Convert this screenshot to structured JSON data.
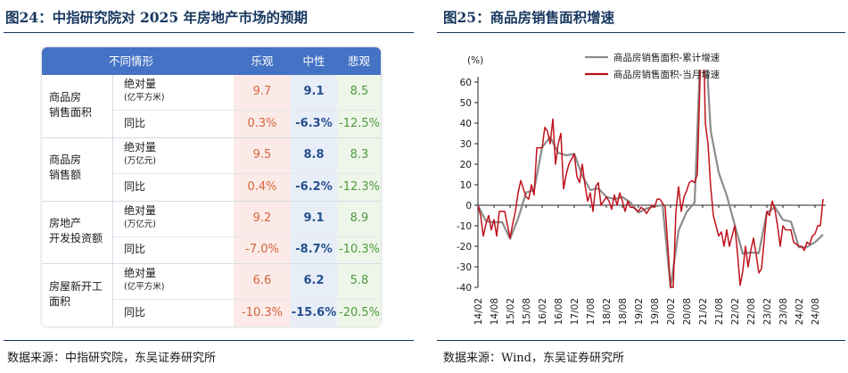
{
  "left": {
    "title": "图24：中指研究院对 2025 年房地产市场的预期",
    "source": "数据来源：中指研究院，东吴证券研究所",
    "table": {
      "headers": [
        "不同情形",
        "乐观",
        "中性",
        "悲观"
      ],
      "groups": [
        {
          "name": [
            "商品房",
            "销售面积"
          ],
          "rows": [
            {
              "label": "绝对量",
              "unit": "(亿平方米)",
              "optimistic": "9.7",
              "neutral": "9.1",
              "pessimistic": "8.5"
            },
            {
              "label": "同比",
              "unit": "",
              "optimistic": "0.3%",
              "neutral": "-6.3%",
              "pessimistic": "-12.5%"
            }
          ]
        },
        {
          "name": [
            "商品房",
            "销售额"
          ],
          "rows": [
            {
              "label": "绝对量",
              "unit": "(万亿元)",
              "optimistic": "9.5",
              "neutral": "8.8",
              "pessimistic": "8.3"
            },
            {
              "label": "同比",
              "unit": "",
              "optimistic": "0.4%",
              "neutral": "-6.2%",
              "pessimistic": "-12.3%"
            }
          ]
        },
        {
          "name": [
            "房地产",
            "开发投资额"
          ],
          "rows": [
            {
              "label": "绝对量",
              "unit": "(万亿元)",
              "optimistic": "9.2",
              "neutral": "9.1",
              "pessimistic": "8.9"
            },
            {
              "label": "同比",
              "unit": "",
              "optimistic": "-7.0%",
              "neutral": "-8.7%",
              "pessimistic": "-10.3%"
            }
          ]
        },
        {
          "name": [
            "房屋新开工",
            "面积"
          ],
          "rows": [
            {
              "label": "绝对量",
              "unit": "(亿平方米)",
              "optimistic": "6.6",
              "neutral": "6.2",
              "pessimistic": "5.8"
            },
            {
              "label": "同比",
              "unit": "",
              "optimistic": "-10.3%",
              "neutral": "-15.6%",
              "pessimistic": "-20.5%"
            }
          ]
        }
      ]
    },
    "colors": {
      "header": "#4472c4",
      "optimistic": "#d4663d",
      "neutral": "#27508f",
      "pessimistic": "#4e9a3c"
    }
  },
  "right": {
    "title": "图25：商品房销售面积增速",
    "source": "数据来源：Wind，东吴证券研究所",
    "chart_data": {
      "type": "line",
      "yunit": "(%)",
      "ylim": [
        -40,
        60
      ],
      "yticks": [
        -40,
        -30,
        -20,
        -10,
        0,
        10,
        20,
        30,
        40,
        50,
        60
      ],
      "xticks": [
        "14/02",
        "14/08",
        "15/02",
        "15/08",
        "16/02",
        "16/08",
        "17/02",
        "17/08",
        "18/02",
        "18/08",
        "19/02",
        "19/08",
        "20/02",
        "20/08",
        "21/02",
        "21/08",
        "22/02",
        "22/08",
        "23/02",
        "23/08",
        "24/02",
        "24/08"
      ],
      "grid": false,
      "legend_position": "top",
      "series": [
        {
          "name": "商品房销售面积-累计增速",
          "color": "#8c8c8c",
          "points": [
            [
              "14/02",
              -0.1
            ],
            [
              "14/05",
              -7.8
            ],
            [
              "14/08",
              -8.3
            ],
            [
              "14/11",
              -8.2
            ],
            [
              "15/02",
              -16.3
            ],
            [
              "15/05",
              -6.6
            ],
            [
              "15/08",
              6.2
            ],
            [
              "15/11",
              7.4
            ],
            [
              "16/02",
              28.2
            ],
            [
              "16/05",
              33.2
            ],
            [
              "16/08",
              25.5
            ],
            [
              "16/11",
              24.3
            ],
            [
              "17/02",
              25.1
            ],
            [
              "17/05",
              14.3
            ],
            [
              "17/08",
              7.4
            ],
            [
              "17/11",
              8.2
            ],
            [
              "18/02",
              4.1
            ],
            [
              "18/05",
              2.9
            ],
            [
              "18/08",
              4.0
            ],
            [
              "18/11",
              1.4
            ],
            [
              "19/02",
              -3.6
            ],
            [
              "19/05",
              -1.6
            ],
            [
              "19/08",
              -0.6
            ],
            [
              "19/11",
              0.2
            ],
            [
              "20/02",
              -39.9
            ],
            [
              "20/05",
              -12.3
            ],
            [
              "20/08",
              -3.3
            ],
            [
              "20/11",
              1.3
            ],
            [
              "21/02",
              104.9
            ],
            [
              "21/05",
              36.3
            ],
            [
              "21/08",
              15.9
            ],
            [
              "21/11",
              4.8
            ],
            [
              "22/02",
              -9.6
            ],
            [
              "22/05",
              -23.6
            ],
            [
              "22/08",
              -23.0
            ],
            [
              "22/11",
              -23.3
            ],
            [
              "23/02",
              -3.6
            ],
            [
              "23/05",
              -0.9
            ],
            [
              "23/08",
              -7.1
            ],
            [
              "23/11",
              -8.0
            ],
            [
              "24/02",
              -20.5
            ],
            [
              "24/05",
              -20.3
            ],
            [
              "24/08",
              -18.0
            ],
            [
              "24/11",
              -14.3
            ]
          ]
        },
        {
          "name": "商品房销售面积-当月增速",
          "color": "#c0121c",
          "points": [
            [
              "14/02",
              -0.1
            ],
            [
              "14/03",
              -5
            ],
            [
              "14/04",
              -15
            ],
            [
              "14/05",
              -9
            ],
            [
              "14/06",
              -5
            ],
            [
              "14/07",
              -12
            ],
            [
              "14/08",
              -7
            ],
            [
              "14/09",
              -15
            ],
            [
              "14/10",
              -3
            ],
            [
              "14/11",
              -3
            ],
            [
              "14/12",
              -3
            ],
            [
              "15/02",
              -16
            ],
            [
              "15/03",
              -9
            ],
            [
              "15/04",
              -3
            ],
            [
              "15/05",
              6
            ],
            [
              "15/06",
              12
            ],
            [
              "15/07",
              8
            ],
            [
              "15/08",
              4
            ],
            [
              "15/09",
              3
            ],
            [
              "15/10",
              10
            ],
            [
              "15/11",
              5
            ],
            [
              "15/12",
              28
            ],
            [
              "16/02",
              28
            ],
            [
              "16/03",
              38
            ],
            [
              "16/04",
              36
            ],
            [
              "16/05",
              30
            ],
            [
              "16/06",
              42
            ],
            [
              "16/07",
              20
            ],
            [
              "16/08",
              30
            ],
            [
              "16/09",
              35
            ],
            [
              "16/10",
              8
            ],
            [
              "16/11",
              15
            ],
            [
              "16/12",
              20
            ],
            [
              "17/02",
              25
            ],
            [
              "17/03",
              14
            ],
            [
              "17/04",
              11
            ],
            [
              "17/05",
              20
            ],
            [
              "17/06",
              10
            ],
            [
              "17/07",
              2
            ],
            [
              "17/08",
              6
            ],
            [
              "17/09",
              -3
            ],
            [
              "17/10",
              9
            ],
            [
              "17/11",
              11
            ],
            [
              "17/12",
              0
            ],
            [
              "18/02",
              4
            ],
            [
              "18/03",
              2
            ],
            [
              "18/04",
              -2
            ],
            [
              "18/05",
              5
            ],
            [
              "18/06",
              0
            ],
            [
              "18/07",
              6
            ],
            [
              "18/08",
              2
            ],
            [
              "18/09",
              -3
            ],
            [
              "18/10",
              2
            ],
            [
              "18/11",
              -1
            ],
            [
              "18/12",
              -1
            ],
            [
              "19/02",
              -3
            ],
            [
              "19/03",
              -1
            ],
            [
              "19/04",
              -2
            ],
            [
              "19/05",
              -4
            ],
            [
              "19/06",
              -2
            ],
            [
              "19/07",
              0
            ],
            [
              "19/08",
              -1
            ],
            [
              "19/09",
              3
            ],
            [
              "19/10",
              3
            ],
            [
              "19/11",
              1
            ],
            [
              "19/12",
              -1
            ],
            [
              "20/02",
              -40
            ],
            [
              "20/03",
              -40
            ],
            [
              "20/04",
              -3
            ],
            [
              "20/05",
              9
            ],
            [
              "20/06",
              -3
            ],
            [
              "20/07",
              4
            ],
            [
              "20/08",
              7
            ],
            [
              "20/09",
              11
            ],
            [
              "20/10",
              12
            ],
            [
              "20/11",
              11
            ],
            [
              "20/12",
              15
            ],
            [
              "21/02",
              105
            ],
            [
              "21/03",
              40
            ],
            [
              "21/04",
              30
            ],
            [
              "21/05",
              9
            ],
            [
              "21/06",
              -5
            ],
            [
              "21/07",
              -10
            ],
            [
              "21/08",
              -15
            ],
            [
              "21/09",
              -13
            ],
            [
              "21/10",
              -20
            ],
            [
              "21/11",
              -12
            ],
            [
              "21/12",
              -20
            ],
            [
              "22/02",
              -10
            ],
            [
              "22/03",
              -23
            ],
            [
              "22/04",
              -39
            ],
            [
              "22/05",
              -32
            ],
            [
              "22/06",
              -20
            ],
            [
              "22/07",
              -30
            ],
            [
              "22/08",
              -22
            ],
            [
              "22/09",
              -16
            ],
            [
              "22/10",
              -24
            ],
            [
              "22/11",
              -33
            ],
            [
              "22/12",
              -31
            ],
            [
              "23/02",
              -3
            ],
            [
              "23/03",
              -5
            ],
            [
              "23/04",
              2
            ],
            [
              "23/05",
              -2
            ],
            [
              "23/06",
              -10
            ],
            [
              "23/07",
              -20
            ],
            [
              "23/08",
              -10
            ],
            [
              "23/09",
              -12
            ],
            [
              "23/10",
              -12
            ],
            [
              "23/11",
              -12
            ],
            [
              "23/12",
              -18
            ],
            [
              "24/02",
              -20
            ],
            [
              "24/03",
              -20
            ],
            [
              "24/04",
              -22
            ],
            [
              "24/05",
              -18
            ],
            [
              "24/06",
              -19
            ],
            [
              "24/07",
              -15
            ],
            [
              "24/08",
              -14
            ],
            [
              "24/09",
              -10
            ],
            [
              "24/10",
              -10
            ],
            [
              "24/11",
              3
            ]
          ]
        }
      ]
    }
  }
}
